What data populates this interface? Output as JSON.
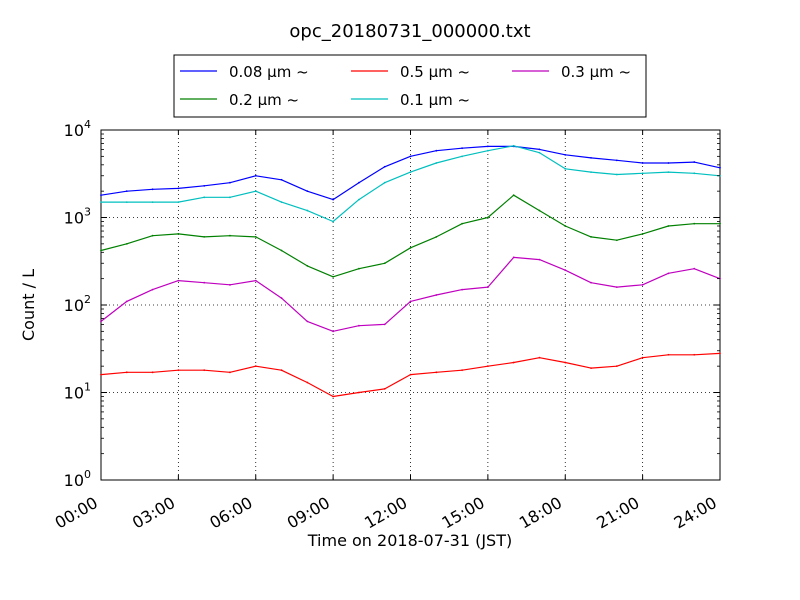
{
  "chart_data": {
    "type": "line",
    "title": "opc_20180731_000000.txt",
    "xlabel": "Time on 2018-07-31 (JST)",
    "ylabel": "Count / L",
    "y_scale": "log",
    "ylim": [
      1,
      10000
    ],
    "xlim": [
      "00:00",
      "24:00"
    ],
    "grid": true,
    "legend_position": "top-center, above plot",
    "x_tick_labels": [
      "00:00",
      "03:00",
      "06:00",
      "09:00",
      "12:00",
      "15:00",
      "18:00",
      "21:00",
      "24:00"
    ],
    "y_ticks": [
      {
        "base": "10",
        "exp": "0"
      },
      {
        "base": "10",
        "exp": "1"
      },
      {
        "base": "10",
        "exp": "2"
      },
      {
        "base": "10",
        "exp": "3"
      },
      {
        "base": "10",
        "exp": "4"
      }
    ],
    "x": [
      "00:00",
      "01:00",
      "02:00",
      "03:00",
      "04:00",
      "05:00",
      "06:00",
      "07:00",
      "08:00",
      "09:00",
      "10:00",
      "11:00",
      "12:00",
      "13:00",
      "14:00",
      "15:00",
      "16:00",
      "17:00",
      "18:00",
      "19:00",
      "20:00",
      "21:00",
      "22:00",
      "23:00",
      "24:00"
    ],
    "series": [
      {
        "name": "0.08 μm ~",
        "color": "#0000ff",
        "values": [
          1800,
          2000,
          2100,
          2150,
          2300,
          2500,
          3000,
          2700,
          2000,
          1600,
          2500,
          3800,
          5000,
          5800,
          6200,
          6500,
          6500,
          6000,
          5200,
          4800,
          4500,
          4200,
          4200,
          4300,
          3700
        ]
      },
      {
        "name": "0.2 μm ~",
        "color": "#008000",
        "values": [
          420,
          500,
          620,
          650,
          600,
          620,
          600,
          420,
          280,
          210,
          260,
          300,
          450,
          600,
          850,
          1000,
          1800,
          1200,
          800,
          600,
          550,
          650,
          800,
          850,
          850
        ]
      },
      {
        "name": "0.5 μm ~",
        "color": "#ff0000",
        "values": [
          16,
          17,
          17,
          18,
          18,
          17,
          20,
          18,
          13,
          9,
          10,
          11,
          16,
          17,
          18,
          20,
          22,
          25,
          22,
          19,
          20,
          25,
          27,
          27,
          28
        ]
      },
      {
        "name": "0.1 μm ~",
        "color": "#00bfbf",
        "values": [
          1500,
          1500,
          1500,
          1500,
          1700,
          1700,
          2000,
          1500,
          1200,
          900,
          1600,
          2500,
          3300,
          4200,
          5000,
          5800,
          6600,
          5500,
          3600,
          3300,
          3100,
          3200,
          3300,
          3200,
          3000
        ]
      },
      {
        "name": "0.3 μm ~",
        "color": "#bf00bf",
        "values": [
          65,
          110,
          150,
          190,
          180,
          170,
          190,
          120,
          65,
          50,
          58,
          60,
          110,
          130,
          150,
          160,
          350,
          330,
          250,
          180,
          160,
          170,
          230,
          260,
          200
        ]
      }
    ]
  }
}
